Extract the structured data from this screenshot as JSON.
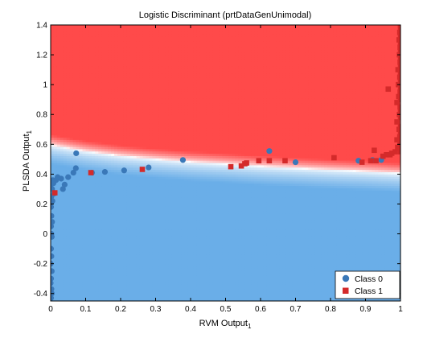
{
  "chart_data": {
    "type": "scatter",
    "title": "Logistic Discriminant (prtDataGenUnimodal)",
    "xlabel": "RVM Output",
    "xlabel_sub": "1",
    "ylabel": "PLSDA Output",
    "ylabel_sub": "1",
    "xlim": [
      0,
      1
    ],
    "ylim": [
      -0.45,
      1.4
    ],
    "xticks": [
      0,
      0.1,
      0.2,
      0.3,
      0.4,
      0.5,
      0.6,
      0.7,
      0.8,
      0.9,
      1
    ],
    "xtick_labels": [
      "0",
      "0.1",
      "0.2",
      "0.3",
      "0.4",
      "0.5",
      "0.6",
      "0.7",
      "0.8",
      "0.9",
      "1"
    ],
    "yticks": [
      -0.4,
      -0.2,
      0,
      0.2,
      0.4,
      0.6,
      0.8,
      1,
      1.2,
      1.4
    ],
    "ytick_labels": [
      "-0.4",
      "-0.2",
      "0",
      "0.2",
      "0.4",
      "0.6",
      "0.8",
      "1",
      "1.2",
      "1.4"
    ],
    "grid": false,
    "legend_position": "bottom-right",
    "background": {
      "description_type": "decision-surface",
      "class0_color": "#6aaee8",
      "class1_color": "#ff4a4a",
      "boundary": [
        [
          0,
          0.595
        ],
        [
          0.1,
          0.553
        ],
        [
          0.2,
          0.522
        ],
        [
          0.3,
          0.5
        ],
        [
          0.4,
          0.482
        ],
        [
          0.5,
          0.468
        ],
        [
          0.6,
          0.452
        ],
        [
          0.7,
          0.44
        ],
        [
          0.8,
          0.428
        ],
        [
          0.9,
          0.418
        ],
        [
          1,
          0.405
        ]
      ]
    },
    "series": [
      {
        "name": "Class 0",
        "marker": "circle",
        "color": "#3a78b8",
        "points": [
          [
            0.002,
            0.12
          ],
          [
            0.001,
            0.05
          ],
          [
            0.003,
            -0.02
          ],
          [
            0.001,
            0.18
          ],
          [
            0.002,
            0.25
          ],
          [
            0.004,
            0.3
          ],
          [
            0.001,
            -0.1
          ],
          [
            0.002,
            -0.15
          ],
          [
            0.0,
            -0.2
          ],
          [
            0.003,
            -0.25
          ],
          [
            0.001,
            -0.3
          ],
          [
            0.0,
            -0.33
          ],
          [
            0.002,
            -0.37
          ],
          [
            0.003,
            -0.4
          ],
          [
            0.001,
            -0.43
          ],
          [
            0.004,
            0.08
          ],
          [
            0.002,
            0.0
          ],
          [
            0.005,
            0.22
          ],
          [
            0.001,
            0.33
          ],
          [
            0.006,
            0.36
          ],
          [
            0.008,
            0.34
          ],
          [
            0.01,
            0.27
          ],
          [
            0.015,
            0.36
          ],
          [
            0.02,
            0.38
          ],
          [
            0.03,
            0.37
          ],
          [
            0.035,
            0.3
          ],
          [
            0.04,
            0.33
          ],
          [
            0.05,
            0.38
          ],
          [
            0.065,
            0.41
          ],
          [
            0.072,
            0.44
          ],
          [
            0.073,
            0.54
          ],
          [
            0.118,
            0.41
          ],
          [
            0.155,
            0.415
          ],
          [
            0.21,
            0.425
          ],
          [
            0.28,
            0.445
          ],
          [
            0.378,
            0.495
          ],
          [
            0.625,
            0.555
          ],
          [
            0.7,
            0.48
          ],
          [
            0.88,
            0.49
          ],
          [
            0.92,
            0.495
          ],
          [
            0.945,
            0.495
          ]
        ]
      },
      {
        "name": "Class 1",
        "marker": "square",
        "color": "#d42a2a",
        "points": [
          [
            0.012,
            0.275
          ],
          [
            0.115,
            0.41
          ],
          [
            0.262,
            0.432
          ],
          [
            0.515,
            0.45
          ],
          [
            0.545,
            0.455
          ],
          [
            0.555,
            0.47
          ],
          [
            0.56,
            0.475
          ],
          [
            0.595,
            0.49
          ],
          [
            0.625,
            0.49
          ],
          [
            0.67,
            0.49
          ],
          [
            0.81,
            0.51
          ],
          [
            0.89,
            0.48
          ],
          [
            0.915,
            0.49
          ],
          [
            0.93,
            0.49
          ],
          [
            0.925,
            0.56
          ],
          [
            0.95,
            0.52
          ],
          [
            0.96,
            0.53
          ],
          [
            0.965,
            0.97
          ],
          [
            0.97,
            0.53
          ],
          [
            0.975,
            0.54
          ],
          [
            0.985,
            0.55
          ],
          [
            0.99,
            0.88
          ],
          [
            0.99,
            0.75
          ],
          [
            0.99,
            0.63
          ],
          [
            0.992,
            0.58
          ],
          [
            0.993,
            1.1
          ],
          [
            0.994,
            1.0
          ],
          [
            0.995,
            0.92
          ],
          [
            0.996,
            0.7
          ],
          [
            0.996,
            1.3
          ],
          [
            0.997,
            1.2
          ],
          [
            0.997,
            0.8
          ],
          [
            0.998,
            1.35
          ],
          [
            0.998,
            1.05
          ],
          [
            0.998,
            0.65
          ],
          [
            0.999,
            1.25
          ],
          [
            0.999,
            1.15
          ],
          [
            0.999,
            0.95
          ],
          [
            0.999,
            0.85
          ],
          [
            0.999,
            0.6
          ],
          [
            1.0,
            1.4
          ],
          [
            1.0,
            1.38
          ],
          [
            1.0,
            1.32
          ],
          [
            1.0,
            1.28
          ],
          [
            1.0,
            1.22
          ],
          [
            1.0,
            1.18
          ],
          [
            1.0,
            1.12
          ],
          [
            1.0,
            1.08
          ],
          [
            1.0,
            1.02
          ],
          [
            1.0,
            0.98
          ],
          [
            1.0,
            0.9
          ],
          [
            1.0,
            0.82
          ],
          [
            1.0,
            0.78
          ],
          [
            1.0,
            0.72
          ],
          [
            1.0,
            0.68
          ],
          [
            1.0,
            0.62
          ],
          [
            1.0,
            0.57
          ],
          [
            1.0,
            0.55
          ]
        ]
      }
    ]
  }
}
